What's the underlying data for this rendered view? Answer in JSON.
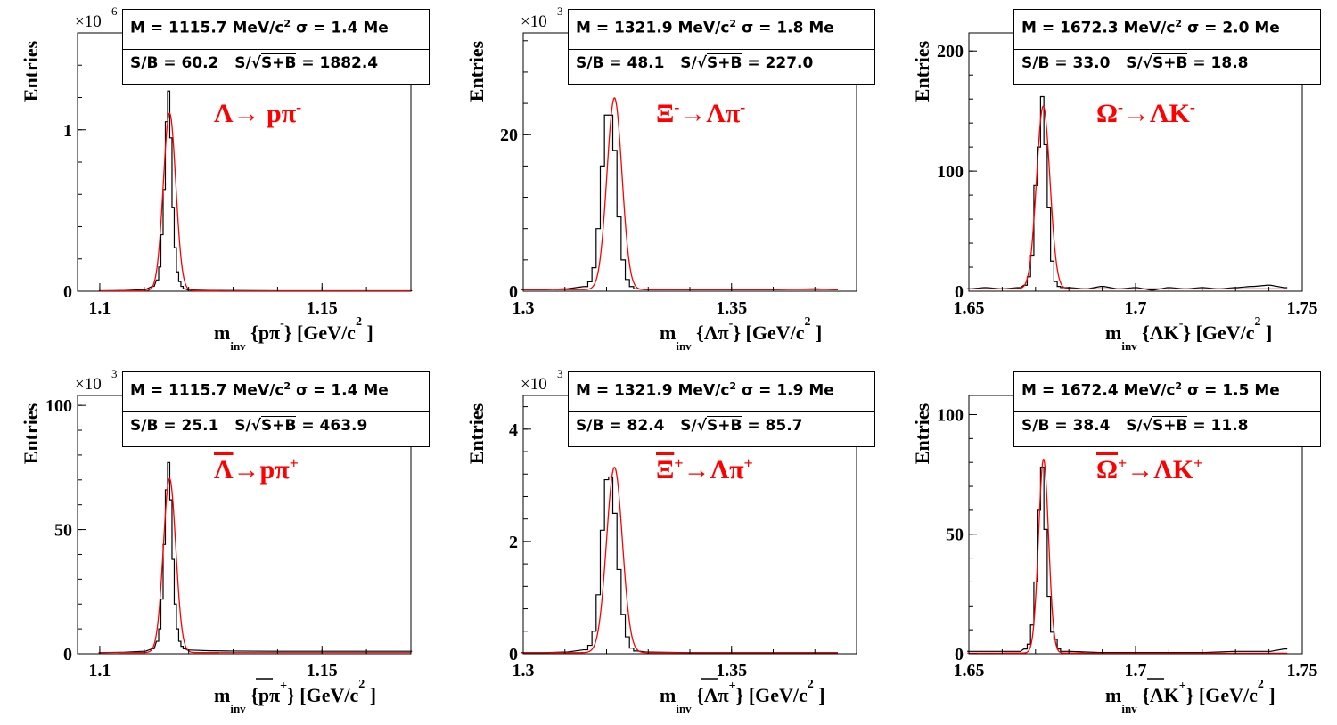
{
  "chart_data": [
    {
      "type": "histogram",
      "ylabel": "Entries",
      "multiplier": "×10",
      "multiplier_exp": "6",
      "xlim": [
        1.095,
        1.17
      ],
      "ylim": [
        0,
        1.6
      ],
      "xticks": [
        {
          "v": 1.1,
          "label": "1.1"
        },
        {
          "v": 1.15,
          "label": "1.15"
        }
      ],
      "yticks": [
        {
          "v": 0,
          "label": "0"
        },
        {
          "v": 1,
          "label": "1"
        }
      ],
      "xlabel": {
        "m": "m",
        "sub": "inv",
        "expr": "{pπ",
        "sup": "-",
        "tail": "} [GeV/c",
        "unit_sup": "2",
        "end": "]"
      },
      "decay": {
        "text": "Λ→ pπ",
        "sup": "-"
      },
      "stats": {
        "line1": "M = 1115.7 MeV/c",
        "line1_sup": "2",
        "line1_tail": " σ = 1.4 Me",
        "sb": "S/B = 60.2",
        "signif_label": "S/",
        "signif_root": "S+B",
        "signif_val": " = 1882.4"
      },
      "fit": {
        "mean": 1.1157,
        "sigma": 0.0014,
        "amp": 1.1,
        "bkg": 0.003
      },
      "hist": {
        "bin_width": 0.0005,
        "x": [
          1.1,
          1.105,
          1.11,
          1.112,
          1.113,
          1.1135,
          1.114,
          1.1145,
          1.115,
          1.1155,
          1.116,
          1.1165,
          1.117,
          1.1175,
          1.118,
          1.1185,
          1.119,
          1.12,
          1.125,
          1.13,
          1.14,
          1.15,
          1.16,
          1.17
        ],
        "y": [
          0.003,
          0.004,
          0.01,
          0.03,
          0.07,
          0.15,
          0.35,
          0.63,
          1.05,
          1.24,
          0.95,
          0.52,
          0.27,
          0.12,
          0.06,
          0.03,
          0.015,
          0.008,
          0.005,
          0.004,
          0.003,
          0.003,
          0.003,
          0.003
        ]
      }
    },
    {
      "type": "histogram",
      "ylabel": "Entries",
      "multiplier": "×10",
      "multiplier_exp": "3",
      "xlim": [
        1.3,
        1.38
      ],
      "ylim": [
        0,
        33
      ],
      "xticks": [
        {
          "v": 1.3,
          "label": "1.3"
        },
        {
          "v": 1.35,
          "label": "1.35"
        }
      ],
      "yticks": [
        {
          "v": 0,
          "label": "0"
        },
        {
          "v": 20,
          "label": "20"
        }
      ],
      "xlabel": {
        "m": "m",
        "sub": "inv",
        "expr": "{Λπ",
        "sup": "-",
        "tail": "} [GeV/c",
        "unit_sup": "2",
        "end": "]"
      },
      "decay": {
        "text": "Ξ",
        "sup1": "-",
        "text2": "→Λπ",
        "sup": "-"
      },
      "stats": {
        "line1": "M = 1321.9 MeV/c",
        "line1_sup": "2",
        "line1_tail": " σ = 1.8 Me",
        "sb": "S/B = 48.1",
        "signif_label": "S/",
        "signif_root": "S+B",
        "signif_val": " = 227.0"
      },
      "fit": {
        "mean": 1.3219,
        "sigma": 0.0018,
        "amp": 24.5,
        "bkg": 0.2
      },
      "hist": {
        "bin_width": 0.001,
        "x": [
          1.3,
          1.305,
          1.31,
          1.315,
          1.316,
          1.317,
          1.318,
          1.319,
          1.32,
          1.321,
          1.322,
          1.323,
          1.324,
          1.325,
          1.326,
          1.327,
          1.33,
          1.34,
          1.35,
          1.36,
          1.37,
          1.375
        ],
        "y": [
          0.2,
          0.2,
          0.3,
          0.6,
          1.2,
          3,
          8,
          16,
          22.5,
          22.5,
          18,
          9.5,
          4,
          1.5,
          0.6,
          0.3,
          0.2,
          0.2,
          0.2,
          0.2,
          0.3,
          0.2
        ]
      }
    },
    {
      "type": "histogram",
      "ylabel": "Entries",
      "xlim": [
        1.65,
        1.75
      ],
      "ylim": [
        0,
        215
      ],
      "xticks": [
        {
          "v": 1.65,
          "label": "1.65"
        },
        {
          "v": 1.7,
          "label": "1.7"
        },
        {
          "v": 1.75,
          "label": "1.75"
        }
      ],
      "yticks": [
        {
          "v": 0,
          "label": "0"
        },
        {
          "v": 100,
          "label": "100"
        },
        {
          "v": 200,
          "label": "200"
        }
      ],
      "xlabel": {
        "m": "m",
        "sub": "inv",
        "expr": "{ΛK",
        "sup": "-",
        "tail": "} [GeV/c",
        "unit_sup": "2",
        "end": "]"
      },
      "decay": {
        "text": "Ω",
        "sup1": "-",
        "text2": "→ΛK",
        "sup": "-"
      },
      "stats": {
        "line1": "M = 1672.3 MeV/c",
        "line1_sup": "2",
        "line1_tail": " σ = 2.0 Me",
        "sb": "S/B = 33.0",
        "signif_label": "S/",
        "signif_root": "S+B",
        "signif_val": " = 18.8"
      },
      "fit": {
        "mean": 1.6723,
        "sigma": 0.002,
        "amp": 152,
        "bkg": 2
      },
      "hist": {
        "bin_width": 0.001,
        "x": [
          1.65,
          1.655,
          1.66,
          1.665,
          1.667,
          1.668,
          1.669,
          1.67,
          1.671,
          1.672,
          1.673,
          1.674,
          1.675,
          1.676,
          1.677,
          1.678,
          1.68,
          1.685,
          1.69,
          1.695,
          1.7,
          1.705,
          1.71,
          1.715,
          1.72,
          1.725,
          1.73,
          1.735,
          1.74,
          1.745
        ],
        "y": [
          2,
          3,
          2,
          3,
          5,
          12,
          30,
          88,
          120,
          162,
          122,
          70,
          25,
          8,
          4,
          3,
          3,
          2,
          4,
          2,
          3,
          1,
          3,
          2,
          3,
          2,
          3,
          4,
          5,
          3
        ]
      }
    },
    {
      "type": "histogram",
      "ylabel": "Entries",
      "multiplier": "×10",
      "multiplier_exp": "3",
      "xlim": [
        1.095,
        1.17
      ],
      "ylim": [
        0,
        104
      ],
      "xticks": [
        {
          "v": 1.1,
          "label": "1.1"
        },
        {
          "v": 1.15,
          "label": "1.15"
        }
      ],
      "yticks": [
        {
          "v": 0,
          "label": "0"
        },
        {
          "v": 50,
          "label": "50"
        },
        {
          "v": 100,
          "label": "100"
        }
      ],
      "xlabel": {
        "m": "m",
        "sub": "inv",
        "expr": "{pπ",
        "sup": "+",
        "tail": "} [GeV/c",
        "unit_sup": "2",
        "end": "]",
        "overline": "p"
      },
      "decay": {
        "text": "Λ",
        "text2": "→pπ",
        "sup": "+",
        "overline": true
      },
      "stats": {
        "line1": "M = 1115.7 MeV/c",
        "line1_sup": "2",
        "line1_tail": " σ = 1.4 Me",
        "sb": "S/B = 25.1",
        "signif_label": "S/",
        "signif_root": "S+B",
        "signif_val": " = 463.9"
      },
      "fit": {
        "mean": 1.1157,
        "sigma": 0.0014,
        "amp": 70,
        "bkg": 0.5
      },
      "hist": {
        "bin_width": 0.0005,
        "x": [
          1.1,
          1.105,
          1.11,
          1.112,
          1.113,
          1.1135,
          1.114,
          1.1145,
          1.115,
          1.1155,
          1.116,
          1.1165,
          1.117,
          1.1175,
          1.118,
          1.1185,
          1.119,
          1.12,
          1.125,
          1.13,
          1.14,
          1.15,
          1.16,
          1.17
        ],
        "y": [
          0.5,
          0.6,
          1,
          2,
          5,
          10,
          22,
          44,
          66,
          77,
          62,
          38,
          20,
          10,
          5,
          3,
          2,
          1.5,
          1.2,
          1.1,
          1,
          1,
          1,
          1
        ]
      }
    },
    {
      "type": "histogram",
      "ylabel": "Entries",
      "multiplier": "×10",
      "multiplier_exp": "3",
      "xlim": [
        1.3,
        1.38
      ],
      "ylim": [
        0,
        4.6
      ],
      "xticks": [
        {
          "v": 1.3,
          "label": "1.3"
        },
        {
          "v": 1.35,
          "label": "1.35"
        }
      ],
      "yticks": [
        {
          "v": 0,
          "label": "0"
        },
        {
          "v": 2,
          "label": "2"
        },
        {
          "v": 4,
          "label": "4"
        }
      ],
      "xlabel": {
        "m": "m",
        "sub": "inv",
        "expr": "{Λπ",
        "sup": "+",
        "tail": "} [GeV/c",
        "unit_sup": "2",
        "end": "]",
        "overline": "Λ"
      },
      "decay": {
        "text": "Ξ",
        "sup1": "+",
        "text2": "→Λπ",
        "sup": "+",
        "overline": true
      },
      "stats": {
        "line1": "M = 1321.9 MeV/c",
        "line1_sup": "2",
        "line1_tail": " σ = 1.9 Me",
        "sb": "S/B = 82.4",
        "signif_label": "S/",
        "signif_root": "S+B",
        "signif_val": " = 85.7"
      },
      "fit": {
        "mean": 1.3219,
        "sigma": 0.0019,
        "amp": 3.3,
        "bkg": 0.02
      },
      "hist": {
        "bin_width": 0.001,
        "x": [
          1.3,
          1.305,
          1.31,
          1.315,
          1.316,
          1.317,
          1.318,
          1.319,
          1.32,
          1.321,
          1.322,
          1.323,
          1.324,
          1.325,
          1.326,
          1.327,
          1.33,
          1.34,
          1.35,
          1.36,
          1.37,
          1.375
        ],
        "y": [
          0.02,
          0.02,
          0.03,
          0.07,
          0.15,
          0.4,
          1.05,
          2.2,
          3.1,
          3.15,
          2.5,
          1.5,
          0.7,
          0.3,
          0.1,
          0.05,
          0.03,
          0.02,
          0.02,
          0.02,
          0.02,
          0.02
        ]
      }
    },
    {
      "type": "histogram",
      "ylabel": "Entries",
      "xlim": [
        1.65,
        1.75
      ],
      "ylim": [
        0,
        108
      ],
      "xticks": [
        {
          "v": 1.65,
          "label": "1.65"
        },
        {
          "v": 1.7,
          "label": "1.7"
        },
        {
          "v": 1.75,
          "label": "1.75"
        }
      ],
      "yticks": [
        {
          "v": 0,
          "label": "0"
        },
        {
          "v": 50,
          "label": "50"
        },
        {
          "v": 100,
          "label": "100"
        }
      ],
      "xlabel": {
        "m": "m",
        "sub": "inv",
        "expr": "{ΛK",
        "sup": "+",
        "tail": "} [GeV/c",
        "unit_sup": "2",
        "end": "]",
        "overline": "Λ"
      },
      "decay": {
        "text": "Ω",
        "sup1": "+",
        "text2": "→ΛK",
        "sup": "+",
        "overline": true
      },
      "stats": {
        "line1": "M = 1672.4 MeV/c",
        "line1_sup": "2",
        "line1_tail": " σ = 1.5 Me",
        "sb": "S/B = 38.4",
        "signif_label": "S/",
        "signif_root": "S+B",
        "signif_val": " = 11.8"
      },
      "fit": {
        "mean": 1.6724,
        "sigma": 0.0015,
        "amp": 81,
        "bkg": 0.3
      },
      "hist": {
        "bin_width": 0.001,
        "x": [
          1.65,
          1.66,
          1.665,
          1.667,
          1.668,
          1.669,
          1.67,
          1.671,
          1.672,
          1.673,
          1.674,
          1.675,
          1.676,
          1.677,
          1.678,
          1.68,
          1.69,
          1.7,
          1.71,
          1.72,
          1.73,
          1.74,
          1.745
        ],
        "y": [
          1,
          1,
          1,
          2,
          4,
          12,
          30,
          60,
          78,
          52,
          24,
          9,
          6,
          2,
          1,
          1,
          0.5,
          0.5,
          0.5,
          0.5,
          1,
          1,
          2
        ]
      }
    }
  ]
}
